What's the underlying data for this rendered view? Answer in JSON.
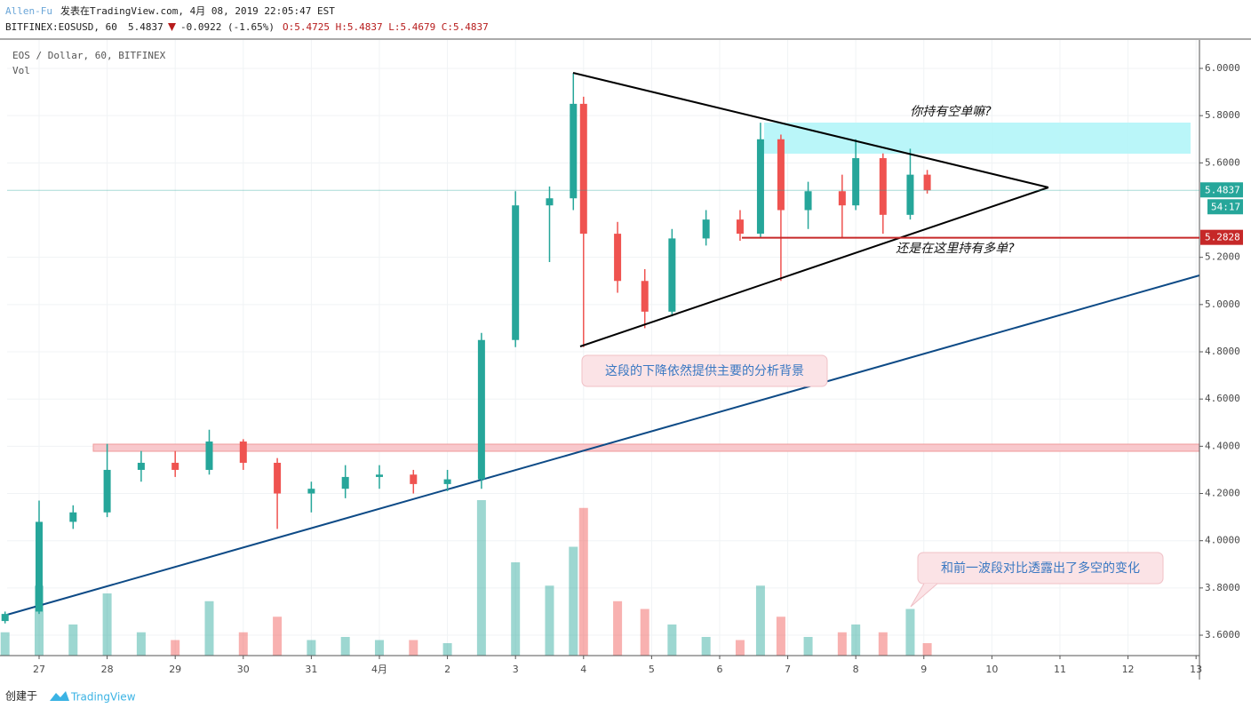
{
  "header": {
    "author": "Allen-Fu",
    "published": "发表在TradingView.com, 4月 08, 2019 22:05:47 EST",
    "symbol": "BITFINEX:EOSUSD, 60",
    "last": "5.4837",
    "change": "-0.0922 (-1.65%)",
    "ohlc": "O:5.4725 H:5.4837 L:5.4679 C:5.4837"
  },
  "chart_data": {
    "type": "candlestick",
    "title": "EOS / Dollar, 60, BITFINEX",
    "volume_label": "Vol",
    "x": [
      -0.5,
      0,
      0.5,
      1,
      1.5,
      2,
      2.5,
      3,
      3.5,
      4,
      4.5,
      5,
      5.5,
      6,
      6.5,
      7,
      7.5,
      7.85,
      8,
      8.5,
      8.9,
      9.3,
      9.8,
      10.3,
      10.6,
      10.9,
      11.3,
      11.8,
      12,
      12.4,
      12.8,
      13.05
    ],
    "open": [
      3.66,
      3.7,
      4.08,
      4.12,
      4.3,
      4.33,
      4.3,
      4.42,
      4.33,
      4.2,
      4.22,
      4.27,
      4.28,
      4.24,
      4.26,
      4.85,
      5.42,
      5.45,
      5.85,
      5.3,
      5.1,
      4.97,
      5.28,
      5.36,
      5.3,
      5.7,
      5.4,
      5.48,
      5.42,
      5.62,
      5.38,
      5.55
    ],
    "high": [
      3.7,
      4.17,
      4.15,
      4.41,
      4.38,
      4.38,
      4.47,
      4.43,
      4.35,
      4.25,
      4.32,
      4.32,
      4.3,
      4.3,
      4.88,
      5.48,
      5.5,
      5.98,
      5.88,
      5.35,
      5.15,
      5.32,
      5.4,
      5.4,
      5.77,
      5.72,
      5.52,
      5.55,
      5.7,
      5.64,
      5.66,
      5.57
    ],
    "low": [
      3.65,
      3.69,
      4.05,
      4.1,
      4.25,
      4.27,
      4.28,
      4.3,
      4.05,
      4.12,
      4.18,
      4.22,
      4.2,
      4.21,
      4.22,
      4.82,
      5.18,
      5.4,
      4.82,
      5.05,
      4.9,
      4.95,
      5.25,
      5.27,
      5.28,
      5.1,
      5.32,
      5.28,
      5.4,
      5.3,
      5.36,
      5.47
    ],
    "close": [
      3.69,
      4.08,
      4.12,
      4.3,
      4.33,
      4.3,
      4.42,
      4.33,
      4.2,
      4.22,
      4.27,
      4.28,
      4.24,
      4.26,
      4.85,
      5.42,
      5.45,
      5.85,
      5.3,
      5.1,
      4.97,
      5.28,
      5.36,
      5.3,
      5.7,
      5.4,
      5.48,
      5.42,
      5.62,
      5.38,
      5.55,
      5.4837
    ],
    "volume": [
      15,
      45,
      20,
      40,
      15,
      10,
      35,
      15,
      25,
      10,
      12,
      10,
      10,
      8,
      100,
      60,
      45,
      70,
      95,
      35,
      30,
      20,
      12,
      10,
      45,
      25,
      12,
      15,
      20,
      15,
      30,
      8
    ],
    "up_color": "#26a69a",
    "down_color": "#ef5350",
    "xlim": [
      -0.47,
      17.05
    ],
    "ylim": [
      3.5136,
      6.1204
    ],
    "xticks": [
      {
        "value": 0,
        "label": "27"
      },
      {
        "value": 1,
        "label": "28"
      },
      {
        "value": 2,
        "label": "29"
      },
      {
        "value": 3,
        "label": "30"
      },
      {
        "value": 4,
        "label": "31"
      },
      {
        "value": 5,
        "label": "4月"
      },
      {
        "value": 6,
        "label": "2"
      },
      {
        "value": 7,
        "label": "3"
      },
      {
        "value": 8,
        "label": "4"
      },
      {
        "value": 9,
        "label": "5"
      },
      {
        "value": 10,
        "label": "6"
      },
      {
        "value": 11,
        "label": "7"
      },
      {
        "value": 12,
        "label": "8"
      },
      {
        "value": 13,
        "label": "9"
      },
      {
        "value": 14,
        "label": "10"
      },
      {
        "value": 15,
        "label": "11"
      },
      {
        "value": 16,
        "label": "12"
      },
      {
        "value": 17,
        "label": "13"
      }
    ],
    "yticks": [
      {
        "value": 3.6,
        "label": "3.6000"
      },
      {
        "value": 3.8,
        "label": "3.8000"
      },
      {
        "value": 4.0,
        "label": "4.0000"
      },
      {
        "value": 4.2,
        "label": "4.2000"
      },
      {
        "value": 4.4,
        "label": "4.4000"
      },
      {
        "value": 4.6,
        "label": "4.6000"
      },
      {
        "value": 4.8,
        "label": "4.8000"
      },
      {
        "value": 5.0,
        "label": "5.0000"
      },
      {
        "value": 5.2,
        "label": "5.2000"
      },
      {
        "value": 5.6,
        "label": "5.6000"
      },
      {
        "value": 5.8,
        "label": "5.8000"
      },
      {
        "value": 6.0,
        "label": "6.0000"
      }
    ],
    "grid": true,
    "last_price": 5.4837,
    "countdown": "54:17",
    "level_price": 5.2828,
    "annotations": [
      "你持有空单嘛?",
      "还是在这里持有多单?",
      "这段的下降依然提供主要的分析背景",
      "和前一波段对比透露出了多空的变化"
    ]
  },
  "footer": {
    "created": "创建于",
    "brand": "TradingView"
  }
}
